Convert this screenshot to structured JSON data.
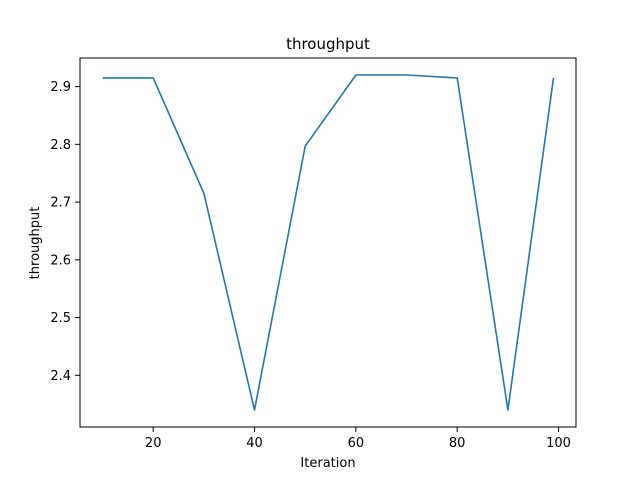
{
  "chart_data": {
    "type": "line",
    "title": "throughput",
    "xlabel": "Iteration",
    "ylabel": "throughput",
    "xlim": [
      5.55,
      103.45
    ],
    "ylim": [
      2.3105,
      2.9495
    ],
    "x_ticks": [
      20,
      40,
      60,
      80,
      100
    ],
    "y_ticks": [
      2.4,
      2.5,
      2.6,
      2.7,
      2.8,
      2.9
    ],
    "x_tick_labels": [
      "20",
      "40",
      "60",
      "80",
      "100"
    ],
    "y_tick_labels": [
      "2.4",
      "2.5",
      "2.6",
      "2.7",
      "2.8",
      "2.9"
    ],
    "grid": false,
    "legend": "none",
    "series": [
      {
        "color": "#1f77b4",
        "x": [
          10,
          20,
          30,
          40,
          50,
          60,
          70,
          80,
          90,
          99
        ],
        "values": [
          2.915,
          2.915,
          2.715,
          2.34,
          2.797,
          2.92,
          2.92,
          2.915,
          2.34,
          2.915
        ]
      }
    ]
  }
}
